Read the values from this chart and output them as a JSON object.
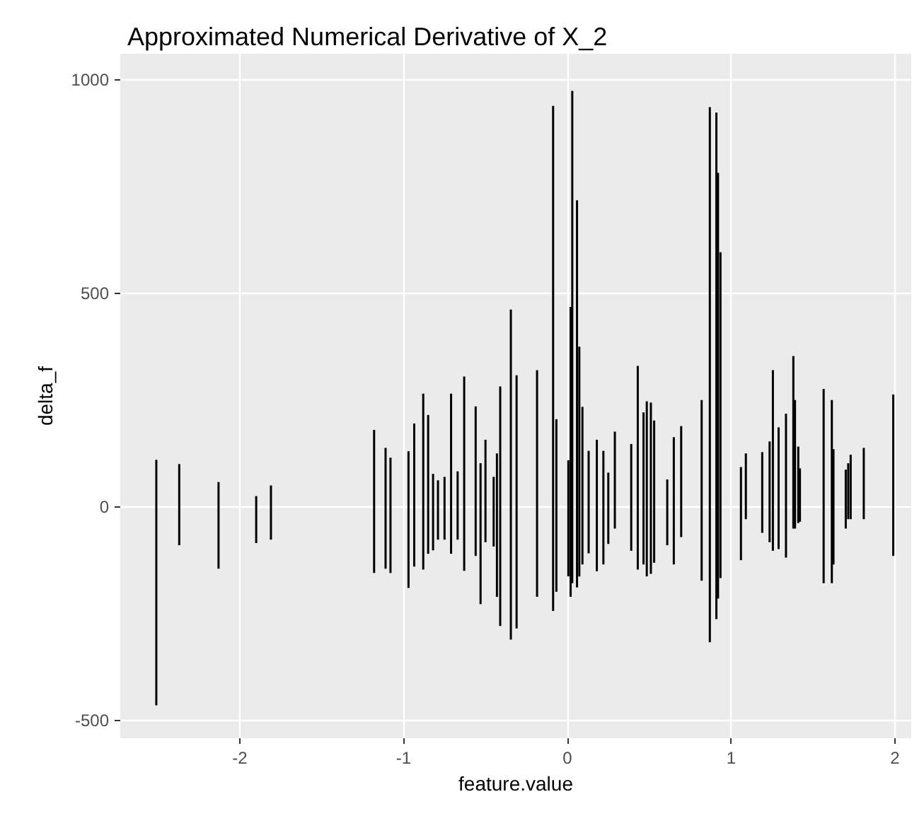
{
  "chart_data": {
    "type": "bar",
    "title": "Approximated Numerical Derivative of X_2",
    "xlabel": "feature.value",
    "ylabel": "delta_f",
    "x": [
      -2.51,
      -2.37,
      -2.13,
      -1.9,
      -1.81,
      -1.18,
      -1.11,
      -1.08,
      -0.97,
      -0.935,
      -0.88,
      -0.85,
      -0.82,
      -0.79,
      -0.75,
      -0.71,
      -0.67,
      -0.63,
      -0.56,
      -0.53,
      -0.5,
      -0.45,
      -0.43,
      -0.41,
      -0.345,
      -0.31,
      -0.185,
      -0.087,
      -0.067,
      0.006,
      0.02,
      0.03,
      0.059,
      0.073,
      0.092,
      0.13,
      0.18,
      0.22,
      0.25,
      0.29,
      0.39,
      0.43,
      0.465,
      0.485,
      0.51,
      0.53,
      0.61,
      0.65,
      0.695,
      0.82,
      0.87,
      0.91,
      0.92,
      0.935,
      1.06,
      1.09,
      1.19,
      1.235,
      1.255,
      1.29,
      1.335,
      1.38,
      1.39,
      1.41,
      1.42,
      1.565,
      1.615,
      1.625,
      1.7,
      1.715,
      1.73,
      1.81,
      1.99
    ],
    "base": [
      -465,
      -90,
      -145,
      -85,
      -77,
      -155,
      -145,
      -155,
      -190,
      -140,
      -147,
      -110,
      -102,
      -77,
      -77,
      -110,
      -77,
      -150,
      -115,
      -228,
      -83,
      -93,
      -211,
      -279,
      -311,
      -285,
      -211,
      -244,
      -199,
      -163,
      -211,
      -179,
      -189,
      -163,
      -135,
      -109,
      -151,
      -135,
      -87,
      -51,
      -103,
      -147,
      -135,
      -163,
      -157,
      -131,
      -90,
      -135,
      -71,
      -173,
      -317,
      -263,
      -215,
      -167,
      -125,
      -29,
      -61,
      -83,
      -103,
      -99,
      -119,
      -51,
      -51,
      -38,
      -35,
      -179,
      -179,
      -135,
      -51,
      -29,
      -29,
      -29,
      -115
    ],
    "values": [
      575,
      190,
      203,
      110,
      127,
      335,
      283,
      270,
      320,
      335,
      412,
      325,
      179,
      139,
      147,
      375,
      160,
      455,
      350,
      330,
      240,
      163,
      336,
      561,
      773,
      593,
      531,
      1183,
      404,
      272,
      679,
      1153,
      907,
      538,
      369,
      240,
      308,
      266,
      167,
      227,
      250,
      477,
      356,
      410,
      401,
      333,
      154,
      298,
      260,
      423,
      1253,
      1186,
      997,
      763,
      218,
      154,
      189,
      236,
      423,
      285,
      337,
      404,
      301,
      179,
      125,
      455,
      429,
      270,
      138,
      131,
      151,
      167,
      378
    ],
    "color": "#000000",
    "xlim": [
      -2.73,
      2.1
    ],
    "ylim": [
      -542,
      1061
    ],
    "xticks": [
      -2,
      -1,
      0,
      1,
      2
    ],
    "yticks": [
      -500,
      0,
      500,
      1000
    ],
    "grid": true
  }
}
